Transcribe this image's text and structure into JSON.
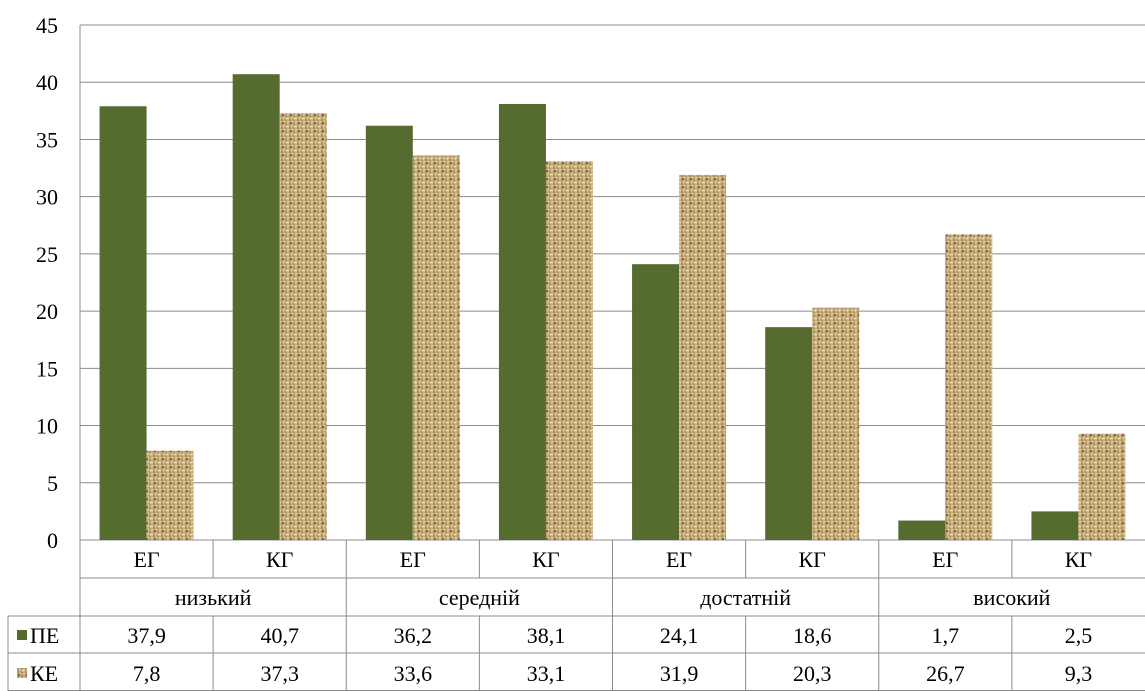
{
  "chart_data": {
    "type": "bar",
    "categories": [
      "ЕГ",
      "КГ",
      "ЕГ",
      "КГ",
      "ЕГ",
      "КГ",
      "ЕГ",
      "КГ"
    ],
    "groups": [
      "низький",
      "середній",
      "достатній",
      "високий"
    ],
    "series": [
      {
        "name": "ПЕ",
        "values": [
          37.9,
          40.7,
          36.2,
          38.1,
          24.1,
          18.6,
          1.7,
          2.5
        ],
        "color": "#556b2f"
      },
      {
        "name": "КЕ",
        "values": [
          7.8,
          37.3,
          33.6,
          33.1,
          31.9,
          20.3,
          26.7,
          9.3
        ],
        "color": "#c8aa76",
        "pattern": "woven"
      }
    ],
    "value_labels": {
      "ПЕ": [
        "37,9",
        "40,7",
        "36,2",
        "38,1",
        "24,1",
        "18,6",
        "1,7",
        "2,5"
      ],
      "КЕ": [
        "7,8",
        "37,3",
        "33,6",
        "33,1",
        "31,9",
        "20,3",
        "26,7",
        "9,3"
      ]
    },
    "yticks": [
      "0",
      "5",
      "10",
      "15",
      "20",
      "25",
      "30",
      "35",
      "40",
      "45"
    ],
    "ylim": [
      0,
      45
    ],
    "grid": true,
    "legend": "data-table"
  }
}
